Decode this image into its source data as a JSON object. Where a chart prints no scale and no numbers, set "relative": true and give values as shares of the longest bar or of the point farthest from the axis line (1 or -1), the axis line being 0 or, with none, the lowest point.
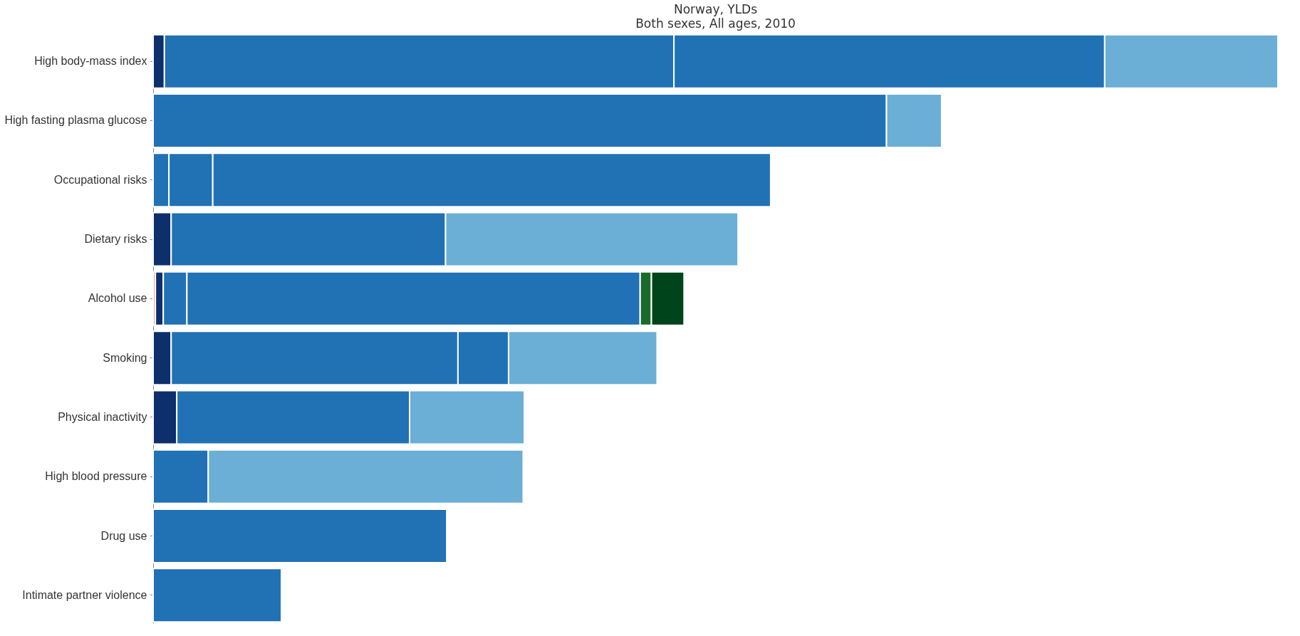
{
  "chart_data": {
    "type": "bar",
    "orientation": "horizontal",
    "stacked": true,
    "relative": true,
    "title": "Norway, YLDs",
    "subtitle": "Both sexes, All ages, 2010",
    "categories": [
      "High body-mass index",
      "High fasting plasma glucose",
      "Occupational risks",
      "Dietary risks",
      "Alcohol use",
      "Smoking",
      "Physical inactivity",
      "High blood pressure",
      "Drug use",
      "Intimate partner violence"
    ],
    "series": [
      {
        "values": [
          0.01,
          0.652,
          0.014,
          0.016,
          0.002,
          0.016,
          0.021,
          0.049,
          0.261,
          0.114
        ],
        "colors": [
          "#0d2f6b",
          "#2171b5",
          "#2171b5",
          "#0d2f6b",
          "#e8a0a0",
          "#0d2f6b",
          "#0d2f6b",
          "#2171b5",
          "#2171b5",
          "#2171b5"
        ]
      },
      {
        "values": [
          0.453,
          0.049,
          0.039,
          0.244,
          0.007,
          0.255,
          0.207,
          0.28,
          null,
          null
        ],
        "colors": [
          "#2171b5",
          "#6baed6",
          "#2171b5",
          "#2171b5",
          "#0d2f6b",
          "#2171b5",
          "#2171b5",
          "#6baed6",
          null,
          null
        ]
      },
      {
        "values": [
          0.383,
          null,
          0.496,
          0.26,
          0.021,
          0.045,
          0.102,
          null,
          null,
          null
        ],
        "colors": [
          "#2171b5",
          null,
          "#2171b5",
          "#6baed6",
          "#2171b5",
          "#2171b5",
          "#6baed6",
          null,
          null,
          null
        ]
      },
      {
        "values": [
          0.154,
          null,
          null,
          null,
          0.403,
          0.132,
          null,
          null,
          null,
          null
        ],
        "colors": [
          "#6baed6",
          null,
          null,
          null,
          "#2171b5",
          "#6baed6",
          null,
          null,
          null,
          null
        ]
      },
      {
        "values": [
          null,
          null,
          null,
          null,
          0.01,
          null,
          null,
          null,
          null,
          null
        ],
        "colors": [
          null,
          null,
          null,
          null,
          "#1a6b2a",
          null,
          null,
          null,
          null,
          null
        ]
      },
      {
        "values": [
          null,
          null,
          null,
          null,
          0.029,
          null,
          null,
          null,
          null,
          null
        ],
        "colors": [
          null,
          null,
          null,
          null,
          "#00441b",
          null,
          null,
          null,
          null,
          null
        ]
      }
    ]
  }
}
